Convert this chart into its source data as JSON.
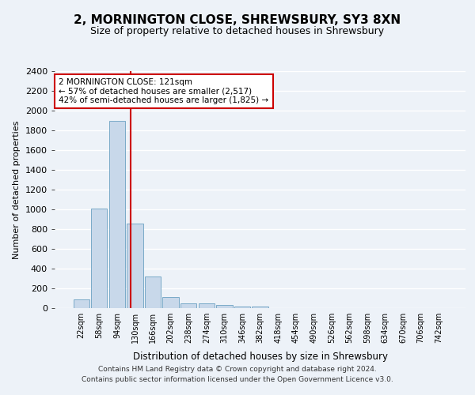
{
  "title1": "2, MORNINGTON CLOSE, SHREWSBURY, SY3 8XN",
  "title2": "Size of property relative to detached houses in Shrewsbury",
  "xlabel": "Distribution of detached houses by size in Shrewsbury",
  "ylabel": "Number of detached properties",
  "bin_labels": [
    "22sqm",
    "58sqm",
    "94sqm",
    "130sqm",
    "166sqm",
    "202sqm",
    "238sqm",
    "274sqm",
    "310sqm",
    "346sqm",
    "382sqm",
    "418sqm",
    "454sqm",
    "490sqm",
    "526sqm",
    "562sqm",
    "598sqm",
    "634sqm",
    "670sqm",
    "706sqm",
    "742sqm"
  ],
  "bar_heights": [
    90,
    1010,
    1900,
    860,
    320,
    110,
    50,
    45,
    30,
    20,
    20,
    0,
    0,
    0,
    0,
    0,
    0,
    0,
    0,
    0,
    0
  ],
  "bar_color": "#c8d8ea",
  "bar_edge_color": "#7aaac8",
  "vline_color": "#cc0000",
  "vline_x": 2.75,
  "annotation_text_line1": "2 MORNINGTON CLOSE: 121sqm",
  "annotation_text_line2": "← 57% of detached houses are smaller (2,517)",
  "annotation_text_line3": "42% of semi-detached houses are larger (1,825) →",
  "annotation_box_facecolor": "#ffffff",
  "annotation_box_edgecolor": "#cc0000",
  "ylim": [
    0,
    2400
  ],
  "yticks": [
    0,
    200,
    400,
    600,
    800,
    1000,
    1200,
    1400,
    1600,
    1800,
    2000,
    2200,
    2400
  ],
  "background_color": "#edf2f8",
  "grid_color": "#ffffff",
  "footer_line1": "Contains HM Land Registry data © Crown copyright and database right 2024.",
  "footer_line2": "Contains public sector information licensed under the Open Government Licence v3.0."
}
